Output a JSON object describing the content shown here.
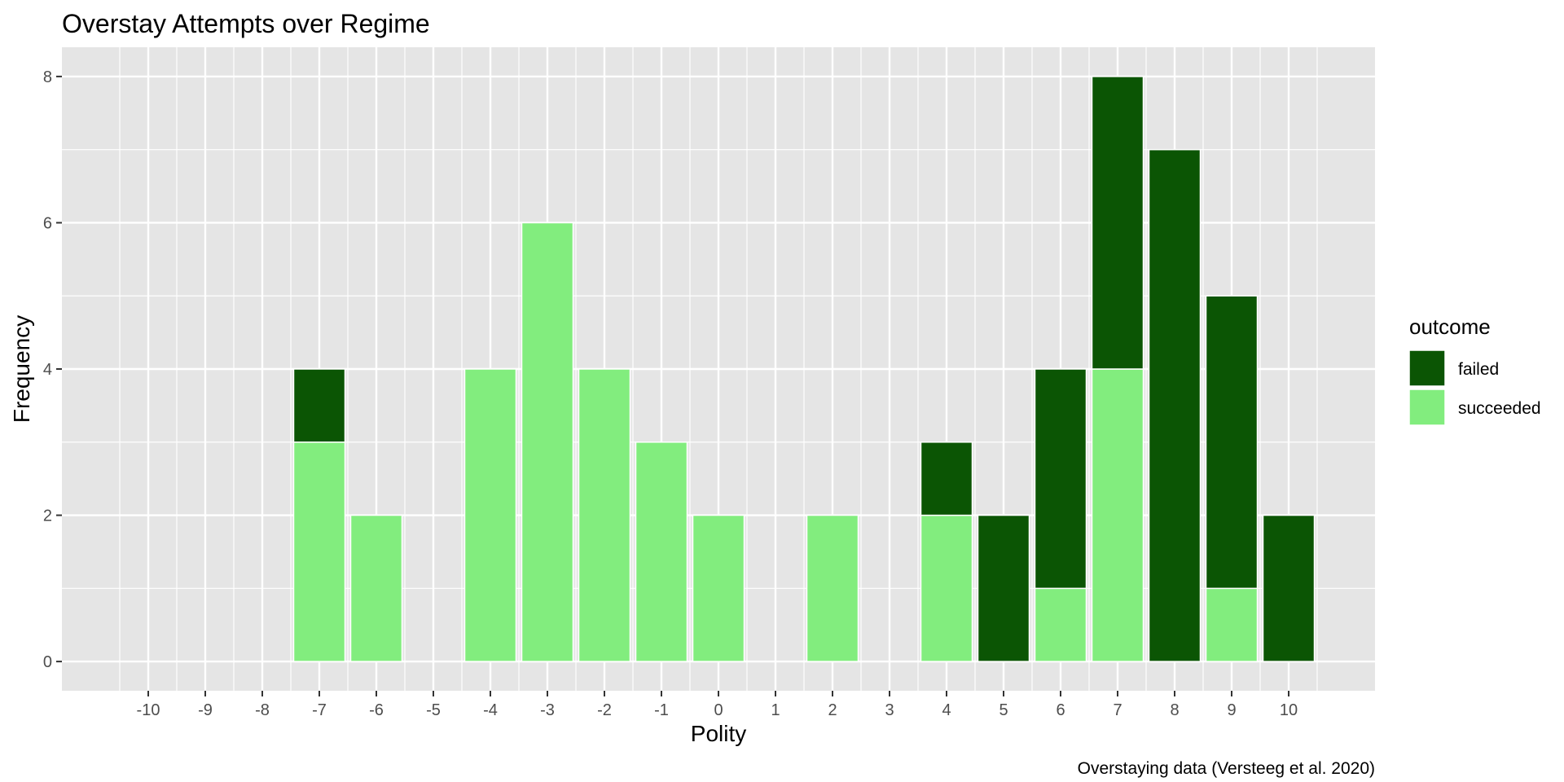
{
  "chart_data": {
    "type": "bar",
    "stacked": true,
    "title": "Overstay Attempts over Regime",
    "xlabel": "Polity",
    "ylabel": "Frequency",
    "caption": "Overstaying data (Versteeg et al. 2020)",
    "categories": [
      "-10",
      "-9",
      "-8",
      "-7",
      "-6",
      "-5",
      "-4",
      "-3",
      "-2",
      "-1",
      "0",
      "1",
      "2",
      "3",
      "4",
      "5",
      "6",
      "7",
      "8",
      "9",
      "10"
    ],
    "series": [
      {
        "name": "failed",
        "color": "#0b5504",
        "values": [
          0,
          0,
          0,
          1,
          0,
          0,
          0,
          0,
          0,
          0,
          0,
          0,
          0,
          0,
          1,
          2,
          3,
          4,
          7,
          4,
          2
        ]
      },
      {
        "name": "succeeded",
        "color": "#82ed7e",
        "values": [
          0,
          0,
          0,
          3,
          2,
          0,
          4,
          6,
          4,
          3,
          2,
          0,
          2,
          0,
          2,
          0,
          1,
          4,
          0,
          1,
          0
        ]
      }
    ],
    "ylim": [
      -0.4,
      8.4
    ],
    "yticks": [
      0,
      2,
      4,
      6,
      8
    ],
    "legend": {
      "title": "outcome",
      "position": "right"
    },
    "grid": true,
    "panel_color": "#e5e5e5"
  }
}
